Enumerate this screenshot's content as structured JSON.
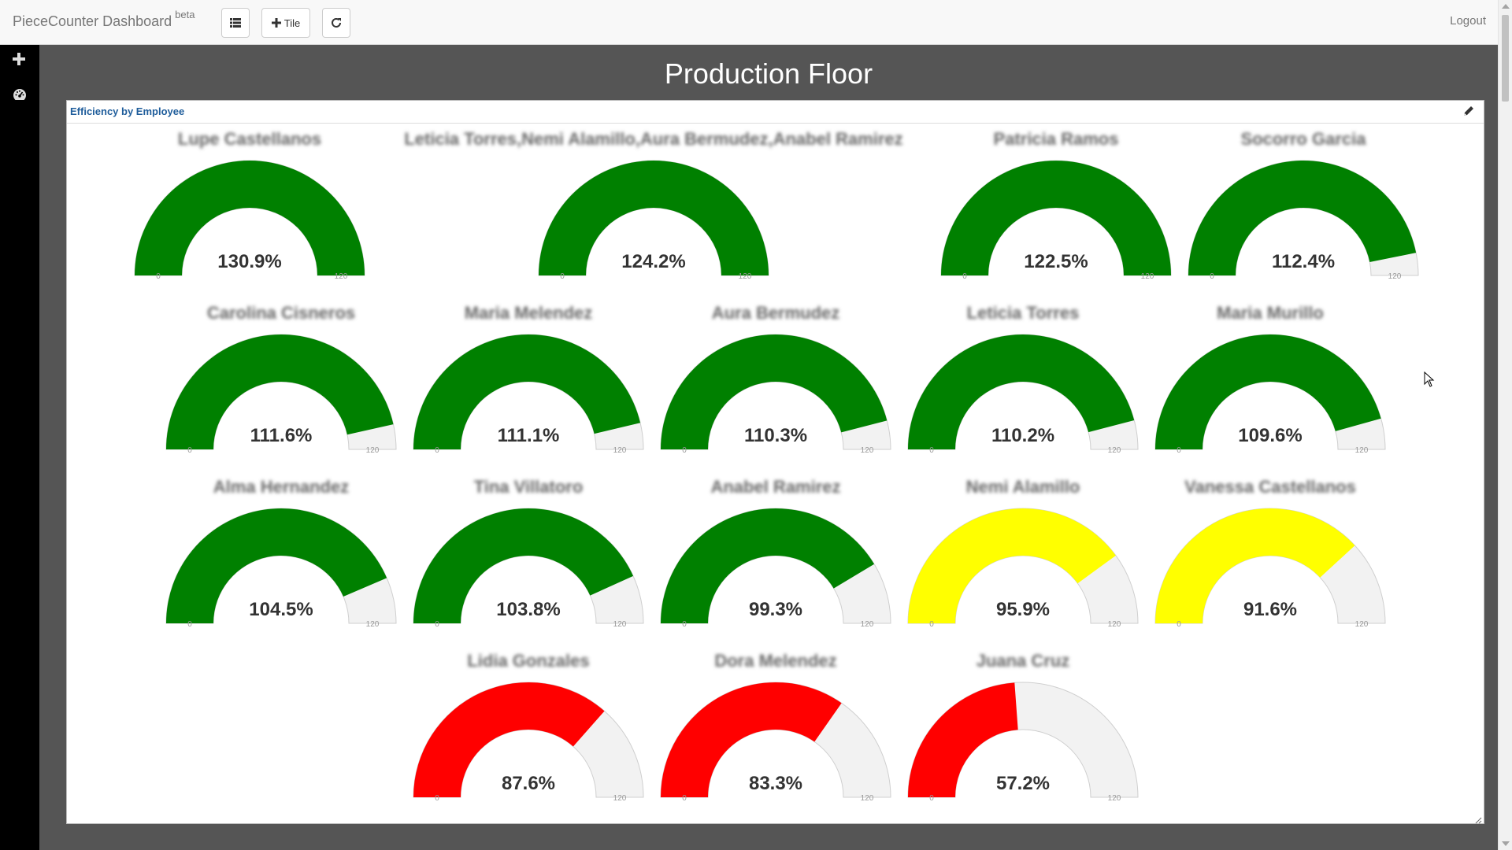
{
  "navbar": {
    "brand": "PieceCounter Dashboard",
    "brand_sup": "beta",
    "list_icon": "list-icon",
    "add_tile_label": "Tile",
    "refresh_icon": "refresh-icon",
    "logout_label": "Logout"
  },
  "sidebar": {
    "items": [
      "plus-icon",
      "dashboard-icon"
    ]
  },
  "page": {
    "title": "Production Floor"
  },
  "tile": {
    "title": "Efficiency by Employee",
    "edit_icon": "pencil-icon"
  },
  "colors": {
    "good": "#008000",
    "warn": "#ffff00",
    "bad": "#ff0000",
    "track": "#f2f2f2",
    "tile_title": "#1f5d9b",
    "background": "#555555"
  },
  "chart_data": {
    "type": "gauge",
    "min": 0,
    "max": 120,
    "unit": "%",
    "gauges": [
      {
        "name": "Lupe Castellanos",
        "value": 130.9,
        "label": "130.9%",
        "status": "good"
      },
      {
        "name": "Leticia Torres,Nemi Alamillo,Aura Bermudez,Anabel Ramirez",
        "value": 124.2,
        "label": "124.2%",
        "status": "good"
      },
      {
        "name": "Patricia Ramos",
        "value": 122.5,
        "label": "122.5%",
        "status": "good"
      },
      {
        "name": "Socorro Garcia",
        "value": 112.4,
        "label": "112.4%",
        "status": "good"
      },
      {
        "name": "Carolina Cisneros",
        "value": 111.6,
        "label": "111.6%",
        "status": "good"
      },
      {
        "name": "Maria Melendez",
        "value": 111.1,
        "label": "111.1%",
        "status": "good"
      },
      {
        "name": "Aura Bermudez",
        "value": 110.3,
        "label": "110.3%",
        "status": "good"
      },
      {
        "name": "Leticia Torres",
        "value": 110.2,
        "label": "110.2%",
        "status": "good"
      },
      {
        "name": "Maria Murillo",
        "value": 109.6,
        "label": "109.6%",
        "status": "good"
      },
      {
        "name": "Alma Hernandez",
        "value": 104.5,
        "label": "104.5%",
        "status": "good"
      },
      {
        "name": "Tina Villatoro",
        "value": 103.8,
        "label": "103.8%",
        "status": "good"
      },
      {
        "name": "Anabel Ramirez",
        "value": 99.3,
        "label": "99.3%",
        "status": "good"
      },
      {
        "name": "Nemi Alamillo",
        "value": 95.9,
        "label": "95.9%",
        "status": "warn"
      },
      {
        "name": "Vanessa Castellanos",
        "value": 91.6,
        "label": "91.6%",
        "status": "warn"
      },
      {
        "name": "Lidia Gonzales",
        "value": 87.6,
        "label": "87.6%",
        "status": "bad"
      },
      {
        "name": "Dora Melendez",
        "value": 83.3,
        "label": "83.3%",
        "status": "bad"
      },
      {
        "name": "Juana Cruz",
        "value": 57.2,
        "label": "57.2%",
        "status": "bad"
      }
    ],
    "tick_labels": [
      "0",
      "120"
    ]
  }
}
